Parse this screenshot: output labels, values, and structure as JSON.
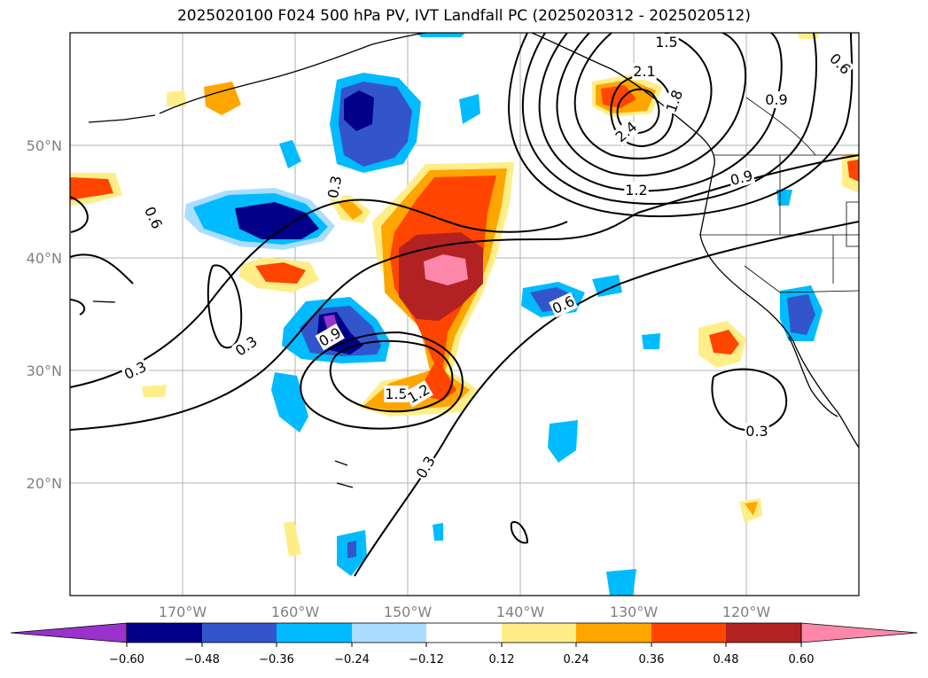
{
  "title": "2025020100 F024 500 hPa PV, IVT Landfall PC (2025020312 - 2025020512)",
  "map": {
    "lon_range": [
      -180,
      -110
    ],
    "lat_range": [
      10,
      60
    ],
    "lat_ticks": [
      "50°N",
      "40°N",
      "30°N",
      "20°N"
    ],
    "lon_ticks": [
      "170°W",
      "160°W",
      "150°W",
      "140°W",
      "130°W",
      "120°W"
    ]
  },
  "contour_labels": [
    "1.5",
    "2.1",
    "1.8",
    "0.9",
    "2.4",
    "0.6",
    "0.9",
    "1.2",
    "0.3",
    "0.6",
    "0.6",
    "0.3",
    "0.3",
    "0.9",
    "1.5",
    "1.2",
    "0.3",
    "0.3"
  ],
  "colorbar": {
    "colors": [
      "#9933cc",
      "#000088",
      "#3355cc",
      "#00bbff",
      "#aaddff",
      "#ffffff",
      "#ffee88",
      "#ffa500",
      "#ff4500",
      "#b22222",
      "#ff88aa"
    ],
    "tick_labels": [
      "−0.60",
      "−0.48",
      "−0.36",
      "−0.24",
      "−0.12",
      "0.12",
      "0.24",
      "0.36",
      "0.48",
      "0.60"
    ]
  }
}
